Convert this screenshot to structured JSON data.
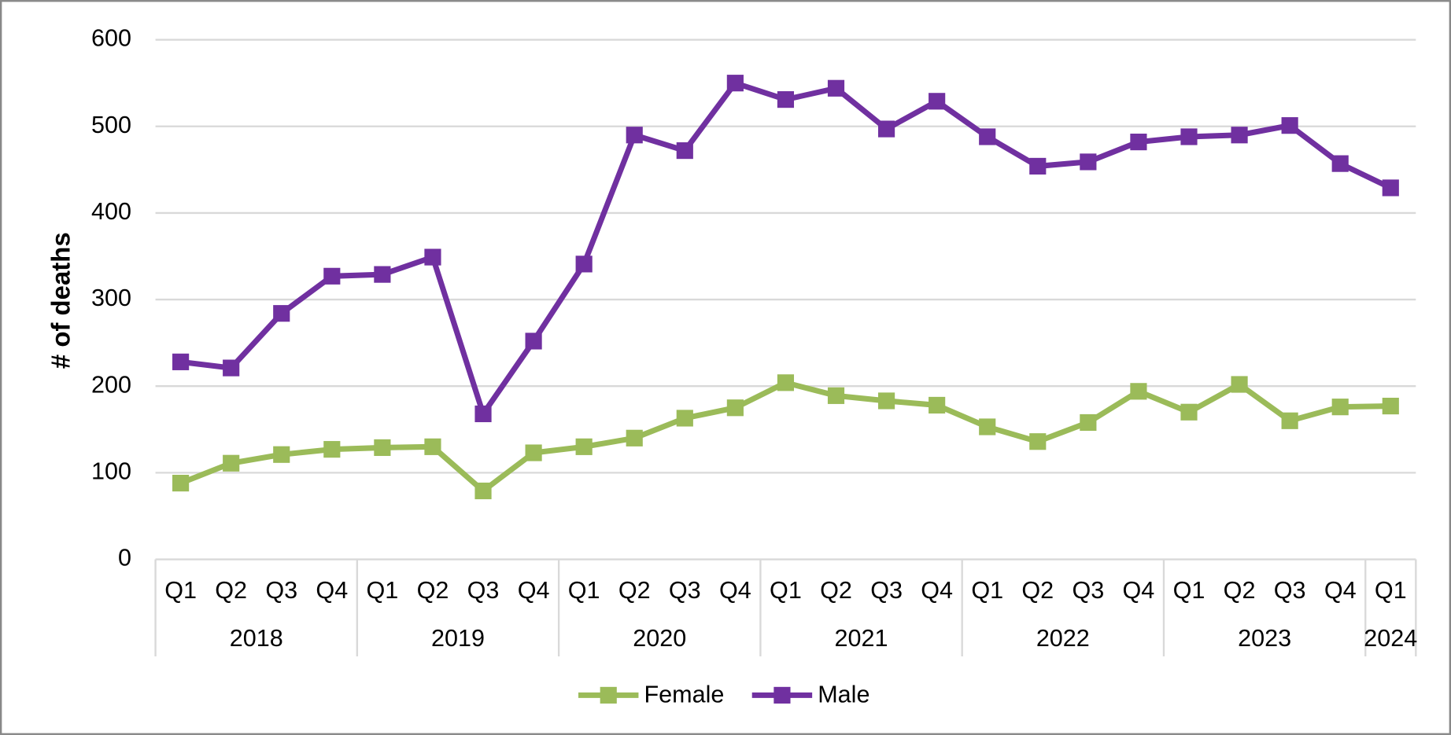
{
  "chart_data": {
    "type": "line",
    "y_label": "# of deaths",
    "categories": [
      "Q1",
      "Q2",
      "Q3",
      "Q4",
      "Q1",
      "Q2",
      "Q3",
      "Q4",
      "Q1",
      "Q2",
      "Q3",
      "Q4",
      "Q1",
      "Q2",
      "Q3",
      "Q4",
      "Q1",
      "Q2",
      "Q3",
      "Q4",
      "Q1",
      "Q2",
      "Q3",
      "Q4",
      "Q1"
    ],
    "category_groups": [
      "2018",
      "2019",
      "2020",
      "2021",
      "2022",
      "2023",
      "2024"
    ],
    "series": [
      {
        "name": "Female",
        "color": "#9bbb59",
        "values": [
          88,
          111,
          121,
          127,
          129,
          130,
          79,
          123,
          130,
          140,
          163,
          175,
          204,
          189,
          183,
          178,
          153,
          136,
          158,
          194,
          170,
          202,
          160,
          176,
          177
        ]
      },
      {
        "name": "Male",
        "color": "#7030a0",
        "values": [
          228,
          221,
          284,
          327,
          329,
          349,
          168,
          252,
          341,
          490,
          472,
          550,
          531,
          544,
          497,
          529,
          488,
          454,
          459,
          482,
          488,
          490,
          501,
          457,
          429
        ]
      }
    ],
    "ylim": [
      0,
      600
    ],
    "yticks": [
      0,
      100,
      200,
      300,
      400,
      500,
      600
    ],
    "grid": true,
    "legend": "bottom"
  }
}
